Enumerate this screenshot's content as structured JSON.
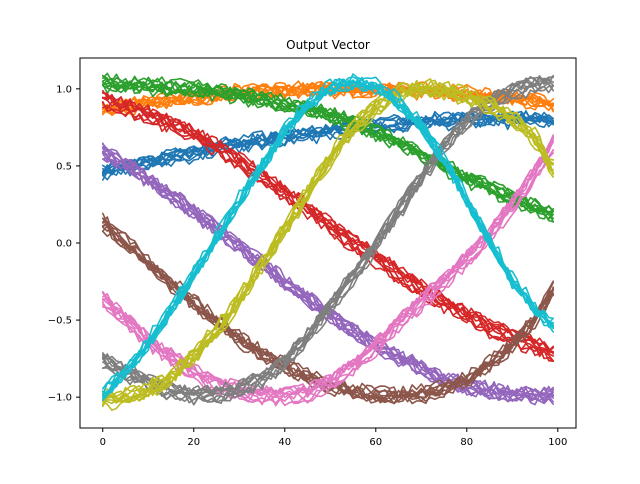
{
  "chart_data": {
    "type": "line",
    "title": "Output Vector",
    "xlabel": "",
    "ylabel": "",
    "xlim": [
      -5,
      104
    ],
    "ylim": [
      -1.2,
      1.2
    ],
    "x_ticks": [
      0,
      20,
      40,
      60,
      80,
      100
    ],
    "x_tick_labels": [
      "0",
      "20",
      "40",
      "60",
      "80",
      "100"
    ],
    "y_ticks": [
      -1.0,
      -0.5,
      0.0,
      0.5,
      1.0
    ],
    "y_tick_labels": [
      "−1.0",
      "−0.5",
      "0.0",
      "0.5",
      "1.0"
    ],
    "grid": false,
    "legend": "none",
    "traces_per_series": 10,
    "noise_amplitude": 0.035,
    "x": [
      0,
      5,
      10,
      15,
      20,
      25,
      30,
      35,
      40,
      45,
      50,
      55,
      60,
      65,
      70,
      75,
      80,
      85,
      90,
      95,
      99
    ],
    "series": [
      {
        "color": "#1f77b4",
        "values": [
          0.45,
          0.49,
          0.52,
          0.55,
          0.58,
          0.61,
          0.64,
          0.66,
          0.68,
          0.7,
          0.72,
          0.74,
          0.76,
          0.77,
          0.78,
          0.79,
          0.8,
          0.8,
          0.8,
          0.8,
          0.79
        ]
      },
      {
        "color": "#ff7f0e",
        "values": [
          0.87,
          0.89,
          0.91,
          0.93,
          0.95,
          0.96,
          0.98,
          0.99,
          1.0,
          1.0,
          1.0,
          1.0,
          1.0,
          1.0,
          0.99,
          0.98,
          0.97,
          0.95,
          0.94,
          0.92,
          0.9
        ]
      },
      {
        "color": "#2ca02c",
        "values": [
          1.03,
          1.02,
          1.01,
          1.0,
          0.99,
          0.97,
          0.95,
          0.92,
          0.89,
          0.86,
          0.82,
          0.77,
          0.71,
          0.65,
          0.57,
          0.49,
          0.41,
          0.35,
          0.28,
          0.22,
          0.17
        ]
      },
      {
        "color": "#d62728",
        "values": [
          0.93,
          0.88,
          0.83,
          0.77,
          0.7,
          0.62,
          0.53,
          0.43,
          0.33,
          0.22,
          0.11,
          0.0,
          -0.1,
          -0.2,
          -0.3,
          -0.39,
          -0.47,
          -0.55,
          -0.61,
          -0.67,
          -0.72
        ]
      },
      {
        "color": "#9467bd",
        "values": [
          0.6,
          0.51,
          0.41,
          0.31,
          0.2,
          0.09,
          -0.02,
          -0.13,
          -0.25,
          -0.36,
          -0.47,
          -0.57,
          -0.66,
          -0.74,
          -0.81,
          -0.88,
          -0.93,
          -0.96,
          -0.98,
          -0.99,
          -0.99
        ]
      },
      {
        "color": "#8c564b",
        "values": [
          0.13,
          0.0,
          -0.13,
          -0.26,
          -0.39,
          -0.51,
          -0.62,
          -0.72,
          -0.8,
          -0.87,
          -0.93,
          -0.97,
          -0.99,
          -1.0,
          -0.98,
          -0.95,
          -0.89,
          -0.79,
          -0.66,
          -0.5,
          -0.31
        ]
      },
      {
        "color": "#e377c2",
        "values": [
          -0.36,
          -0.5,
          -0.63,
          -0.74,
          -0.84,
          -0.91,
          -0.96,
          -0.98,
          -0.99,
          -0.97,
          -0.9,
          -0.8,
          -0.67,
          -0.52,
          -0.38,
          -0.25,
          -0.1,
          0.05,
          0.25,
          0.46,
          0.65
        ]
      },
      {
        "color": "#7f7f7f",
        "values": [
          -0.76,
          -0.85,
          -0.92,
          -0.97,
          -1.0,
          -0.99,
          -0.96,
          -0.89,
          -0.78,
          -0.62,
          -0.42,
          -0.22,
          -0.02,
          0.2,
          0.42,
          0.62,
          0.78,
          0.9,
          0.98,
          1.02,
          1.03
        ]
      },
      {
        "color": "#bcbd22",
        "values": [
          -1.02,
          -1.0,
          -0.96,
          -0.87,
          -0.74,
          -0.57,
          -0.37,
          -0.14,
          0.09,
          0.32,
          0.55,
          0.74,
          0.88,
          0.97,
          1.0,
          0.99,
          0.95,
          0.89,
          0.8,
          0.68,
          0.48
        ]
      },
      {
        "color": "#17becf",
        "values": [
          -0.96,
          -0.82,
          -0.63,
          -0.42,
          -0.19,
          0.05,
          0.29,
          0.52,
          0.74,
          0.91,
          1.02,
          1.06,
          1.03,
          0.93,
          0.77,
          0.56,
          0.3,
          0.03,
          -0.23,
          -0.41,
          -0.52
        ]
      }
    ]
  }
}
